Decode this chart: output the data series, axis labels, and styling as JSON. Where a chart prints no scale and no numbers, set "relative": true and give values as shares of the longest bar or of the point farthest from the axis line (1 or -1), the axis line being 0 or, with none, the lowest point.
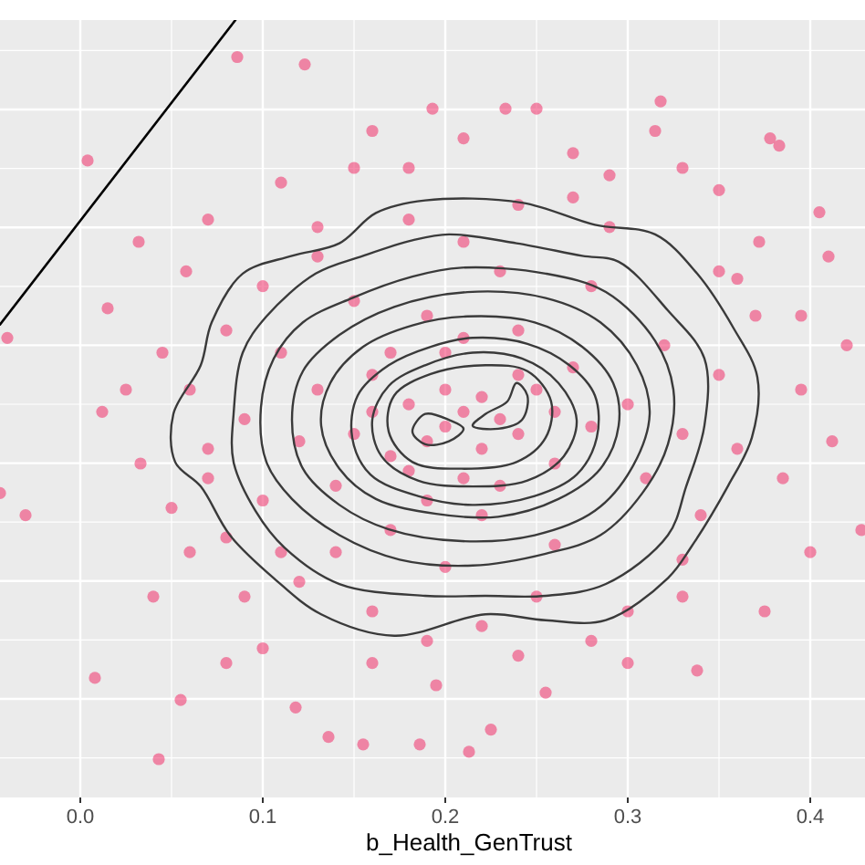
{
  "chart_data": {
    "type": "scatter",
    "xlabel": "b_Health_GenTrust",
    "relative": true,
    "xlim": [
      -0.044,
      0.43
    ],
    "xticks": [
      {
        "value": 0,
        "label": "0.0"
      },
      0.1,
      0.2,
      0.3,
      0.4
    ],
    "grid": true,
    "marker": "circle",
    "series": [
      {
        "color": "#f0306a",
        "x": [
          0.086,
          0.123,
          0.004,
          0.193,
          0.233,
          0.25,
          0.318,
          0.315,
          0.378,
          0.383,
          0.032,
          0.015,
          -0.04,
          -0.044,
          -0.03,
          0.012,
          0.033,
          0.008,
          0.043,
          0.055,
          0.08,
          0.118,
          0.136,
          0.155,
          0.186,
          0.213,
          0.225,
          0.16,
          0.255,
          0.3,
          0.338,
          0.375,
          0.4,
          0.428,
          0.412,
          0.42,
          0.395,
          0.41,
          0.405,
          0.372,
          0.35,
          0.29,
          0.27,
          0.21,
          0.16,
          0.15,
          0.11,
          0.07,
          0.058,
          0.045,
          0.025,
          0.07,
          0.06,
          0.04,
          0.09,
          0.1,
          0.195,
          0.24,
          0.28,
          0.33,
          0.385,
          0.395,
          0.36,
          0.33,
          0.18,
          0.13,
          0.2,
          0.21,
          0.19,
          0.22,
          0.23,
          0.18,
          0.24,
          0.17,
          0.25,
          0.16,
          0.21,
          0.2,
          0.26,
          0.15,
          0.27,
          0.14,
          0.28,
          0.13,
          0.22,
          0.19,
          0.3,
          0.12,
          0.24,
          0.17,
          0.31,
          0.11,
          0.26,
          0.15,
          0.32,
          0.1,
          0.23,
          0.2,
          0.33,
          0.09,
          0.28,
          0.14,
          0.34,
          0.08,
          0.21,
          0.25,
          0.35,
          0.07,
          0.18,
          0.12,
          0.36,
          0.06,
          0.29,
          0.16,
          0.33,
          0.1,
          0.27,
          0.22,
          0.37,
          0.05,
          0.13,
          0.3,
          0.08,
          0.24,
          0.19,
          0.35,
          0.11,
          0.2,
          0.22,
          0.18,
          0.24,
          0.21,
          0.17,
          0.26,
          0.19,
          0.23,
          0.16
        ],
        "values": [
          0.95,
          0.94,
          0.81,
          0.88,
          0.88,
          0.88,
          0.89,
          0.85,
          0.84,
          0.83,
          0.7,
          0.61,
          0.57,
          0.36,
          0.33,
          0.47,
          0.4,
          0.11,
          0.0,
          0.08,
          0.13,
          0.07,
          0.03,
          0.02,
          0.02,
          0.01,
          0.04,
          0.13,
          0.09,
          0.13,
          0.12,
          0.2,
          0.28,
          0.31,
          0.43,
          0.56,
          0.6,
          0.68,
          0.74,
          0.7,
          0.77,
          0.79,
          0.82,
          0.84,
          0.85,
          0.8,
          0.78,
          0.73,
          0.66,
          0.55,
          0.5,
          0.38,
          0.28,
          0.22,
          0.22,
          0.15,
          0.1,
          0.14,
          0.16,
          0.22,
          0.38,
          0.5,
          0.65,
          0.8,
          0.8,
          0.72,
          0.45,
          0.47,
          0.43,
          0.49,
          0.46,
          0.48,
          0.44,
          0.41,
          0.5,
          0.52,
          0.38,
          0.55,
          0.4,
          0.44,
          0.53,
          0.37,
          0.45,
          0.5,
          0.33,
          0.6,
          0.48,
          0.43,
          0.58,
          0.31,
          0.38,
          0.55,
          0.29,
          0.62,
          0.56,
          0.35,
          0.66,
          0.26,
          0.44,
          0.46,
          0.64,
          0.28,
          0.33,
          0.58,
          0.7,
          0.22,
          0.52,
          0.42,
          0.73,
          0.24,
          0.42,
          0.5,
          0.72,
          0.2,
          0.27,
          0.64,
          0.76,
          0.18,
          0.6,
          0.34,
          0.68,
          0.2,
          0.3,
          0.75,
          0.16,
          0.66,
          0.28,
          0.5,
          0.42,
          0.39,
          0.52,
          0.57,
          0.55,
          0.47,
          0.35,
          0.37,
          0.47
        ]
      },
      {
        "type": "line",
        "marker": "none",
        "color": "#000000",
        "x": [
          -0.044,
          0.085
        ],
        "values": [
          0.588,
          1.0
        ]
      }
    ]
  }
}
